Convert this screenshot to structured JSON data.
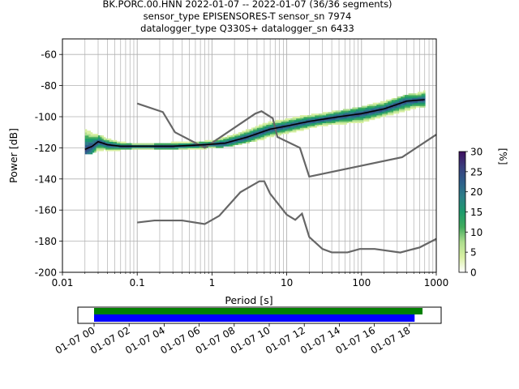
{
  "chart_data": [
    {
      "type": "heatmap",
      "title_lines": [
        "BK.PORC.00.HNN   2022-01-07 -- 2022-01-07  (36/36 segments)",
        "sensor_type EPISENSORES-T sensor_sn 7974",
        "datalogger_type Q330S+ datalogger_sn 6433"
      ],
      "xlabel": "Period [s]",
      "ylabel": "Power [dB]",
      "xscale": "log",
      "xlim": [
        0.01,
        1000
      ],
      "ylim": [
        -200,
        -50
      ],
      "x_tick_labels": [
        "0.01",
        "0.1",
        "1",
        "10",
        "100",
        "1000"
      ],
      "y_tick_labels": [
        "-60",
        "-80",
        "-100",
        "-120",
        "-140",
        "-160",
        "-180",
        "-200"
      ],
      "grid": true,
      "colorbar": {
        "label": "[%]",
        "range": [
          0,
          30
        ],
        "tick_labels": [
          "0",
          "5",
          "10",
          "15",
          "20",
          "25",
          "30"
        ],
        "colors": [
          "#ffffff",
          "#d9f0a3",
          "#addd8e",
          "#41ab5d",
          "#1d9a6c",
          "#2c7f88",
          "#2d5d8a",
          "#3a3d7c",
          "#3f0f5f"
        ]
      },
      "mode_curve": [
        [
          0.02,
          -121
        ],
        [
          0.025,
          -119
        ],
        [
          0.03,
          -116
        ],
        [
          0.04,
          -118
        ],
        [
          0.06,
          -119
        ],
        [
          0.1,
          -119
        ],
        [
          0.3,
          -119
        ],
        [
          0.8,
          -118
        ],
        [
          1.5,
          -117
        ],
        [
          3,
          -113
        ],
        [
          6,
          -108
        ],
        [
          10,
          -106
        ],
        [
          20,
          -103
        ],
        [
          50,
          -100
        ],
        [
          100,
          -98
        ],
        [
          200,
          -95
        ],
        [
          400,
          -90
        ],
        [
          700,
          -89
        ]
      ],
      "noise_model_high": [
        [
          0.1,
          -91.5
        ],
        [
          0.22,
          -97
        ],
        [
          0.32,
          -110
        ],
        [
          0.8,
          -120
        ],
        [
          3.8,
          -98
        ],
        [
          4.6,
          -96.5
        ],
        [
          6.5,
          -101
        ],
        [
          7.5,
          -113
        ],
        [
          15,
          -120
        ],
        [
          20,
          -138.5
        ],
        [
          350,
          -126
        ],
        [
          1000,
          -111.5
        ]
      ],
      "noise_model_low": [
        [
          0.1,
          -168
        ],
        [
          0.17,
          -166.7
        ],
        [
          0.4,
          -166.7
        ],
        [
          0.8,
          -169
        ],
        [
          1.25,
          -163.7
        ],
        [
          2.4,
          -148.5
        ],
        [
          4.3,
          -141.5
        ],
        [
          5,
          -141.5
        ],
        [
          6,
          -149.5
        ],
        [
          10,
          -163
        ],
        [
          13,
          -166.3
        ],
        [
          16,
          -162.3
        ],
        [
          20,
          -177.3
        ],
        [
          30,
          -185
        ],
        [
          40,
          -187.2
        ],
        [
          65,
          -187.2
        ],
        [
          95,
          -185
        ],
        [
          150,
          -185
        ],
        [
          330,
          -187.3
        ],
        [
          600,
          -184
        ],
        [
          1000,
          -178.5
        ]
      ],
      "spread_band": [
        [
          0.02,
          -124,
          -107
        ],
        [
          0.03,
          -122,
          -112
        ],
        [
          0.06,
          -121,
          -116
        ],
        [
          0.1,
          -121,
          -117
        ],
        [
          0.5,
          -121,
          -116
        ],
        [
          1,
          -120,
          -115
        ],
        [
          2,
          -118,
          -111
        ],
        [
          5,
          -114,
          -104
        ],
        [
          10,
          -111,
          -101
        ],
        [
          30,
          -106,
          -98
        ],
        [
          100,
          -104,
          -94
        ],
        [
          300,
          -98,
          -88
        ],
        [
          700,
          -93,
          -83
        ]
      ],
      "line_color": "#666666",
      "mode_color": "#000000"
    },
    {
      "type": "timeline",
      "x_tick_labels": [
        "01-07 00",
        "01-07 02",
        "01-07 04",
        "01-07 06",
        "01-07 08",
        "01-07 10",
        "01-07 12",
        "01-07 14",
        "01-07 16",
        "01-07 18"
      ],
      "x_tick_hours": [
        0,
        2,
        4,
        6,
        8,
        10,
        12,
        14,
        16,
        18
      ],
      "bars": [
        {
          "color": "#008000",
          "start_hour": 0,
          "end_hour": 18.75
        },
        {
          "color": "#0000ff",
          "start_hour": 0,
          "end_hour": 18.3
        }
      ]
    }
  ]
}
